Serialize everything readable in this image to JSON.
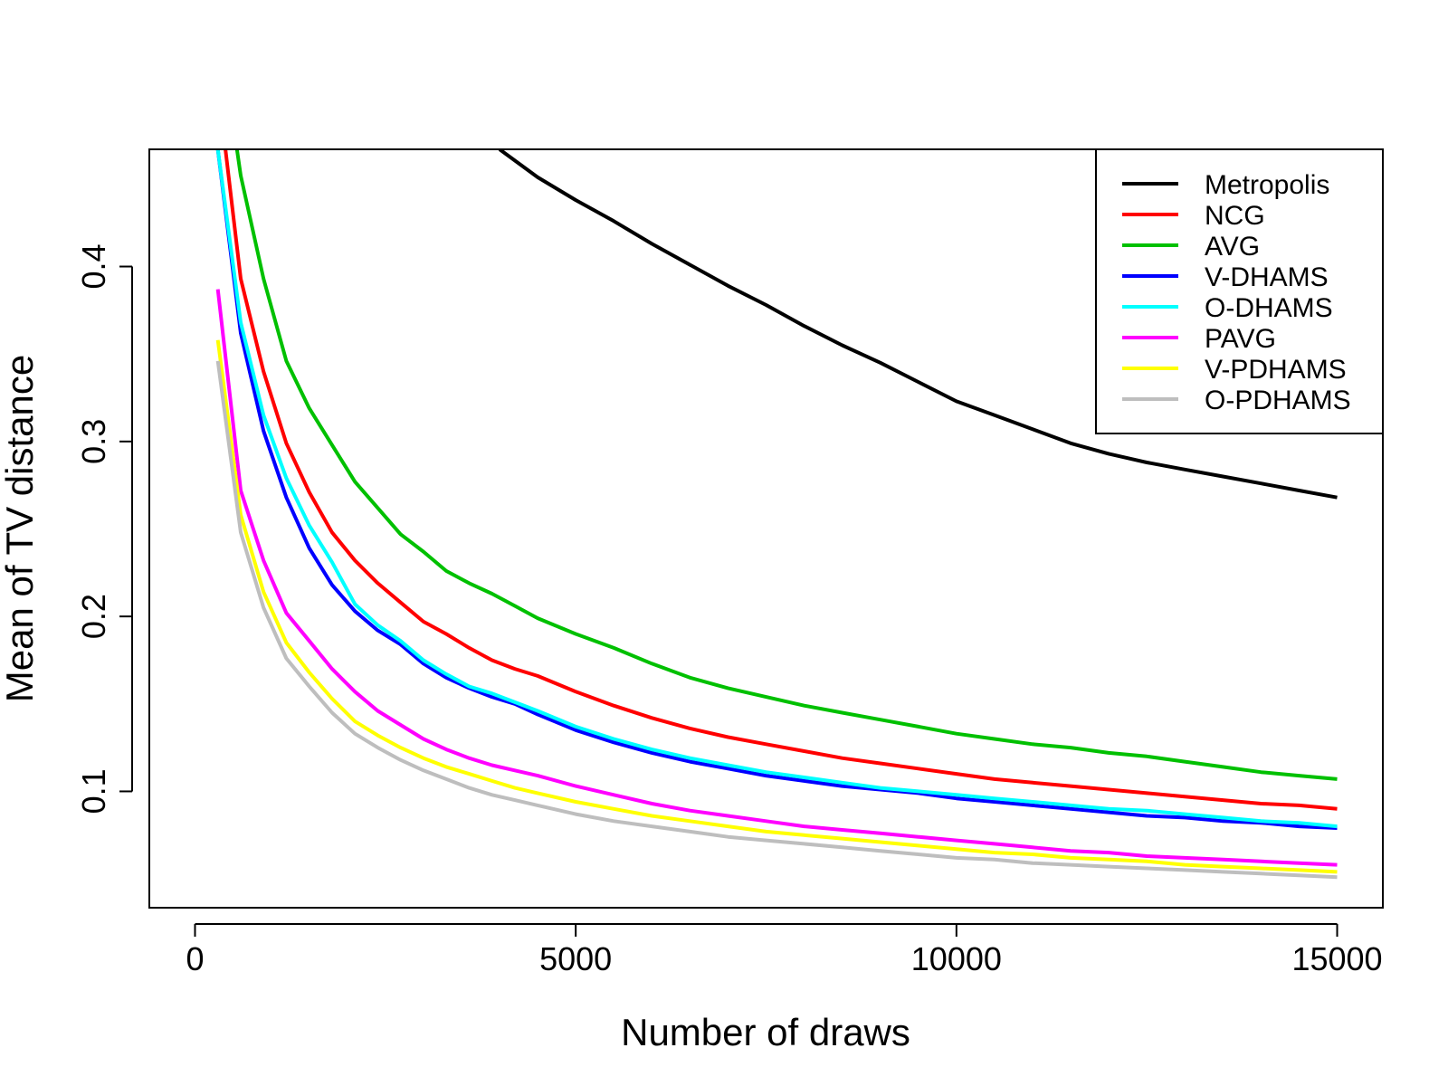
{
  "chart_data": {
    "type": "line",
    "title": "",
    "xlabel": "Number of draws",
    "ylabel": "Mean of TV distance",
    "xlim": [
      -600,
      15600
    ],
    "ylim": [
      0.0335,
      0.467
    ],
    "xticks": [
      0,
      5000,
      10000,
      15000
    ],
    "yticks": [
      0.1,
      0.2,
      0.3,
      0.4
    ],
    "grid": false,
    "legend_position": "top-right",
    "series": [
      {
        "name": "Metropolis",
        "color": "#000000",
        "x": [
          4000,
          4500,
          5000,
          5500,
          6000,
          6500,
          7000,
          7500,
          8000,
          8500,
          9000,
          9500,
          10000,
          10500,
          11000,
          11500,
          12000,
          12500,
          13000,
          13500,
          14000,
          14500,
          15000
        ],
        "y": [
          0.467,
          0.451,
          0.438,
          0.426,
          0.413,
          0.401,
          0.389,
          0.378,
          0.366,
          0.355,
          0.345,
          0.334,
          0.323,
          0.315,
          0.307,
          0.299,
          0.293,
          0.288,
          0.284,
          0.28,
          0.276,
          0.272,
          0.268
        ]
      },
      {
        "name": "NCG",
        "color": "#ff0000",
        "x": [
          400,
          600,
          900,
          1200,
          1500,
          1800,
          2100,
          2400,
          2700,
          3000,
          3300,
          3600,
          3900,
          4200,
          4500,
          5000,
          5500,
          6000,
          6500,
          7000,
          7500,
          8000,
          8500,
          9000,
          9500,
          10000,
          10500,
          11000,
          11500,
          12000,
          12500,
          13000,
          13500,
          14000,
          14500,
          15000
        ],
        "y": [
          0.467,
          0.393,
          0.34,
          0.299,
          0.271,
          0.248,
          0.232,
          0.219,
          0.208,
          0.197,
          0.19,
          0.182,
          0.175,
          0.17,
          0.166,
          0.157,
          0.149,
          0.142,
          0.136,
          0.131,
          0.127,
          0.123,
          0.119,
          0.116,
          0.113,
          0.11,
          0.107,
          0.105,
          0.103,
          0.101,
          0.099,
          0.097,
          0.095,
          0.093,
          0.092,
          0.09
        ]
      },
      {
        "name": "AVG",
        "color": "#00c000",
        "x": [
          550,
          600,
          900,
          1200,
          1500,
          1800,
          2100,
          2400,
          2700,
          3000,
          3300,
          3600,
          3900,
          4200,
          4500,
          5000,
          5500,
          6000,
          6500,
          7000,
          7500,
          8000,
          8500,
          9000,
          9500,
          10000,
          10500,
          11000,
          11500,
          12000,
          12500,
          13000,
          13500,
          14000,
          14500,
          15000
        ],
        "y": [
          0.467,
          0.452,
          0.393,
          0.346,
          0.319,
          0.298,
          0.277,
          0.262,
          0.247,
          0.237,
          0.226,
          0.219,
          0.213,
          0.206,
          0.199,
          0.19,
          0.182,
          0.173,
          0.165,
          0.159,
          0.154,
          0.149,
          0.145,
          0.141,
          0.137,
          0.133,
          0.13,
          0.127,
          0.125,
          0.122,
          0.12,
          0.117,
          0.114,
          0.111,
          0.109,
          0.107
        ]
      },
      {
        "name": "V-DHAMS",
        "color": "#0000ff",
        "x": [
          300,
          600,
          900,
          1200,
          1500,
          1800,
          2100,
          2400,
          2700,
          3000,
          3300,
          3600,
          3900,
          4200,
          4500,
          5000,
          5500,
          6000,
          6500,
          7000,
          7500,
          8000,
          8500,
          9000,
          9500,
          10000,
          10500,
          11000,
          11500,
          12000,
          12500,
          13000,
          13500,
          14000,
          14500,
          15000
        ],
        "y": [
          0.467,
          0.362,
          0.306,
          0.268,
          0.239,
          0.218,
          0.203,
          0.192,
          0.184,
          0.173,
          0.165,
          0.159,
          0.154,
          0.15,
          0.144,
          0.135,
          0.128,
          0.122,
          0.117,
          0.113,
          0.109,
          0.106,
          0.103,
          0.101,
          0.099,
          0.096,
          0.094,
          0.092,
          0.09,
          0.088,
          0.086,
          0.085,
          0.083,
          0.082,
          0.08,
          0.079
        ]
      },
      {
        "name": "O-DHAMS",
        "color": "#00ffff",
        "x": [
          300,
          600,
          900,
          1200,
          1500,
          1800,
          2100,
          2400,
          2700,
          3000,
          3300,
          3600,
          3900,
          4200,
          4500,
          5000,
          5500,
          6000,
          6500,
          7000,
          7500,
          8000,
          8500,
          9000,
          9500,
          10000,
          10500,
          11000,
          11500,
          12000,
          12500,
          13000,
          13500,
          14000,
          14500,
          15000
        ],
        "y": [
          0.467,
          0.368,
          0.315,
          0.279,
          0.252,
          0.231,
          0.207,
          0.195,
          0.186,
          0.175,
          0.167,
          0.16,
          0.156,
          0.151,
          0.146,
          0.137,
          0.13,
          0.124,
          0.119,
          0.115,
          0.111,
          0.108,
          0.105,
          0.102,
          0.1,
          0.098,
          0.096,
          0.094,
          0.092,
          0.09,
          0.089,
          0.087,
          0.085,
          0.083,
          0.082,
          0.08
        ]
      },
      {
        "name": "PAVG",
        "color": "#ff00ff",
        "x": [
          300,
          600,
          900,
          1200,
          1500,
          1800,
          2100,
          2400,
          2700,
          3000,
          3300,
          3600,
          3900,
          4200,
          4500,
          5000,
          5500,
          6000,
          6500,
          7000,
          7500,
          8000,
          8500,
          9000,
          9500,
          10000,
          10500,
          11000,
          11500,
          12000,
          12500,
          13000,
          13500,
          14000,
          14500,
          15000
        ],
        "y": [
          0.387,
          0.272,
          0.232,
          0.202,
          0.186,
          0.17,
          0.157,
          0.146,
          0.138,
          0.13,
          0.124,
          0.119,
          0.115,
          0.112,
          0.109,
          0.103,
          0.098,
          0.093,
          0.089,
          0.086,
          0.083,
          0.08,
          0.078,
          0.076,
          0.074,
          0.072,
          0.07,
          0.068,
          0.066,
          0.065,
          0.063,
          0.062,
          0.061,
          0.06,
          0.059,
          0.058
        ]
      },
      {
        "name": "V-PDHAMS",
        "color": "#ffff00",
        "x": [
          300,
          600,
          900,
          1200,
          1500,
          1800,
          2100,
          2400,
          2700,
          3000,
          3300,
          3600,
          3900,
          4200,
          4500,
          5000,
          5500,
          6000,
          6500,
          7000,
          7500,
          8000,
          8500,
          9000,
          9500,
          10000,
          10500,
          11000,
          11500,
          12000,
          12500,
          13000,
          13500,
          14000,
          14500,
          15000
        ],
        "y": [
          0.358,
          0.258,
          0.214,
          0.185,
          0.168,
          0.153,
          0.14,
          0.132,
          0.125,
          0.119,
          0.114,
          0.11,
          0.106,
          0.102,
          0.099,
          0.094,
          0.09,
          0.086,
          0.083,
          0.08,
          0.077,
          0.075,
          0.073,
          0.071,
          0.069,
          0.067,
          0.065,
          0.064,
          0.062,
          0.061,
          0.06,
          0.058,
          0.057,
          0.056,
          0.055,
          0.054
        ]
      },
      {
        "name": "O-PDHAMS",
        "color": "#bebebe",
        "x": [
          300,
          600,
          900,
          1200,
          1500,
          1800,
          2100,
          2400,
          2700,
          3000,
          3300,
          3600,
          3900,
          4200,
          4500,
          5000,
          5500,
          6000,
          6500,
          7000,
          7500,
          8000,
          8500,
          9000,
          9500,
          10000,
          10500,
          11000,
          11500,
          12000,
          12500,
          13000,
          13500,
          14000,
          14500,
          15000
        ],
        "y": [
          0.346,
          0.248,
          0.205,
          0.176,
          0.16,
          0.145,
          0.133,
          0.125,
          0.118,
          0.112,
          0.107,
          0.102,
          0.098,
          0.095,
          0.092,
          0.087,
          0.083,
          0.08,
          0.077,
          0.074,
          0.072,
          0.07,
          0.068,
          0.066,
          0.064,
          0.062,
          0.061,
          0.059,
          0.058,
          0.057,
          0.056,
          0.055,
          0.054,
          0.053,
          0.052,
          0.051
        ]
      }
    ]
  }
}
